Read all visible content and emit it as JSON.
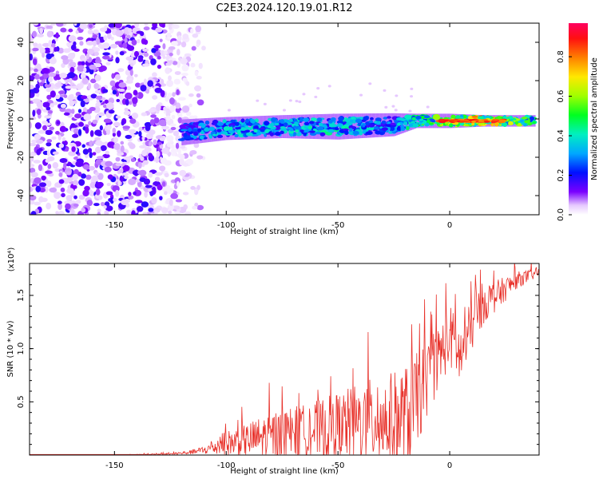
{
  "title": "C2E3.2024.120.19.01.R12",
  "chart_data": [
    {
      "type": "heatmap",
      "xlabel": "Height of straight line (km)",
      "ylabel": "Frequency (Hz)",
      "xlim": [
        -188,
        40
      ],
      "ylim": [
        -50,
        50
      ],
      "xticks": [
        -150,
        -100,
        -50,
        0
      ],
      "yticks": [
        -40,
        -20,
        0,
        20,
        40
      ],
      "colorbar": {
        "label": "Normalized spectral amplitude",
        "range": [
          0,
          0.97
        ],
        "ticks": [
          "0.0",
          "0.2",
          "0.4",
          "0.6",
          "0.8"
        ],
        "tick_values": [
          0.0,
          0.2,
          0.4,
          0.6,
          0.8
        ]
      },
      "features": {
        "noise_region_x": [
          -188,
          -118
        ],
        "echo_band": [
          {
            "x": -120,
            "f_center": -7,
            "width": 9,
            "amp": 0.25
          },
          {
            "x": -100,
            "f_center": -5,
            "width": 8,
            "amp": 0.35
          },
          {
            "x": -75,
            "f_center": -4,
            "width": 8,
            "amp": 0.35
          },
          {
            "x": -50,
            "f_center": -4,
            "width": 9,
            "amp": 0.38
          },
          {
            "x": -25,
            "f_center": -3,
            "width": 8,
            "amp": 0.3
          },
          {
            "x": -15,
            "f_center": -1,
            "width": 5,
            "amp": 0.45
          },
          {
            "x": 0,
            "f_center": -1,
            "width": 5,
            "amp": 0.6
          },
          {
            "x": 15,
            "f_center": -1,
            "width": 4,
            "amp": 0.7
          },
          {
            "x": 38,
            "f_center": -1,
            "width": 4,
            "amp": 0.45
          }
        ]
      }
    },
    {
      "type": "line",
      "xlabel": "Height of straight line (km)",
      "ylabel": "SNR (10 * v/v)",
      "yscale_label": "(x10⁴)",
      "xlim": [
        -188,
        40
      ],
      "ylim": [
        0,
        1.8
      ],
      "xticks": [
        -150,
        -100,
        -50,
        0
      ],
      "yticks": [
        0.5,
        1.0,
        1.5
      ],
      "ytick_labels": [
        "0.5",
        "1.0",
        "1.5"
      ],
      "line_color": "#e8312a",
      "series": [
        {
          "x": [
            -188,
            -150,
            -125,
            -115,
            -108,
            -100,
            -92,
            -85,
            -75,
            -65,
            -55,
            -45,
            -35,
            -25,
            -18,
            -15,
            -10,
            -5,
            0,
            5,
            10,
            15,
            20,
            30,
            40
          ],
          "values": [
            0.0,
            0.0,
            0.01,
            0.03,
            0.06,
            0.12,
            0.15,
            0.18,
            0.22,
            0.25,
            0.28,
            0.32,
            0.36,
            0.38,
            0.42,
            0.55,
            0.75,
            0.95,
            1.15,
            0.95,
            1.25,
            1.45,
            1.5,
            1.65,
            1.72
          ],
          "noise": [
            0,
            0,
            0.01,
            0.02,
            0.05,
            0.12,
            0.15,
            0.2,
            0.25,
            0.25,
            0.3,
            0.35,
            0.4,
            0.45,
            0.5,
            0.45,
            0.35,
            0.3,
            0.3,
            0.3,
            0.25,
            0.2,
            0.15,
            0.08,
            0.04
          ]
        }
      ]
    }
  ]
}
